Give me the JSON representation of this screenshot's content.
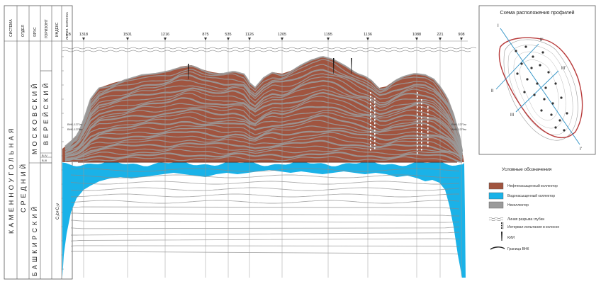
{
  "strat_headers": [
    "СИСТЕМА",
    "ОТДЕЛ",
    "ЯРУС",
    "ГОРИЗОНТ",
    "ИНДЕКС",
    "ЛИТОЛ. КОЛОНКА"
  ],
  "strat_labels": {
    "system": "КАМЕННОУГОЛЬНАЯ",
    "series": "СРЕДНИЙ",
    "stage_lower": "БАШКИРСКИЙ",
    "stage_upper": "МОСКОВСКИЙ",
    "horizon": "ВЕРЕЙСКИЙ",
    "index": "C₂b+C₂v",
    "index_top_1": "В-IV",
    "index_top_2": "B-III"
  },
  "well_ids": [
    "1318",
    "1501",
    "1216",
    "875",
    "535",
    "1126",
    "1205",
    "1195",
    "1136",
    "1088",
    "221",
    "908"
  ],
  "well_prefix": "СВ",
  "contact_labels": {
    "left_1": "ВНК-1271м",
    "left_2": "ВНК-1279м",
    "right_1": "ВНК-1271м",
    "right_2": "ВНК-1279м"
  },
  "inset_map": {
    "title": "Схема расположения профилей",
    "profile_labels": [
      "I",
      "II'",
      "II",
      "III",
      "III'",
      "I'"
    ]
  },
  "legend": {
    "title": "Условные обозначения",
    "items": [
      {
        "label": "Нефтенасыщенный коллектор",
        "color": "#a0543f"
      },
      {
        "label": "Водонасыщенный коллектор",
        "color": "#1ab2e8"
      },
      {
        "label": "Неколлектор",
        "color": "#9a9a9a"
      }
    ],
    "symbols": [
      {
        "label": "Линия разрыва глубин"
      },
      {
        "label": "Интервал испытания в колонне"
      },
      {
        "label": "КИИ"
      },
      {
        "label": "Граница ВНК"
      }
    ]
  },
  "colors": {
    "oil": "#a0543f",
    "water": "#1ab2e8",
    "nonreservoir": "#9a9a9a"
  }
}
